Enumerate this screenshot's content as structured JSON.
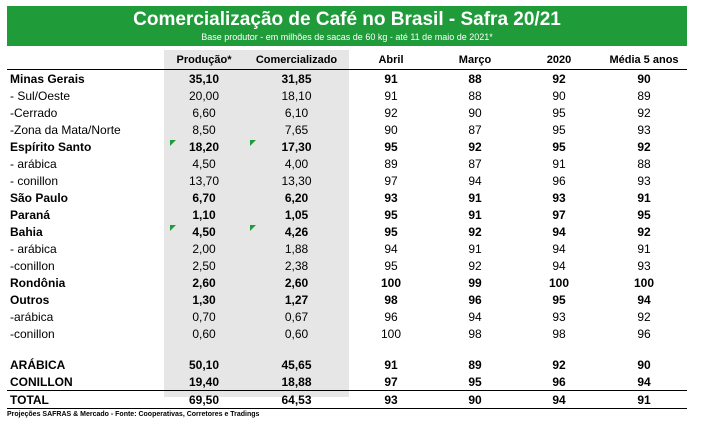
{
  "title": "Comercialização de Café no Brasil - Safra 20/21",
  "subtitle": "Base produtor - em milhões de sacas de 60 kg - até 11 de maio de 2021*",
  "columns": [
    "",
    "Produção*",
    "Comercializado",
    "Abril",
    "Março",
    "2020",
    "Média 5 anos"
  ],
  "rows": [
    {
      "label": "Minas Gerais",
      "bold": true,
      "marked": false,
      "values": [
        "35,10",
        "31,85",
        "91",
        "88",
        "92",
        "90"
      ]
    },
    {
      "label": " - Sul/Oeste",
      "bold": false,
      "marked": false,
      "values": [
        "20,00",
        "18,10",
        "91",
        "88",
        "90",
        "89"
      ]
    },
    {
      "label": " -Cerrado",
      "bold": false,
      "marked": false,
      "values": [
        "6,60",
        "6,10",
        "92",
        "90",
        "95",
        "92"
      ]
    },
    {
      "label": " -Zona da Mata/Norte",
      "bold": false,
      "marked": false,
      "values": [
        "8,50",
        "7,65",
        "90",
        "87",
        "95",
        "93"
      ]
    },
    {
      "label": "Espírito Santo",
      "bold": true,
      "marked": true,
      "values": [
        "18,20",
        "17,30",
        "95",
        "92",
        "95",
        "92"
      ]
    },
    {
      "label": " - arábica",
      "bold": false,
      "marked": false,
      "values": [
        "4,50",
        "4,00",
        "89",
        "87",
        "91",
        "88"
      ]
    },
    {
      "label": "- conillon",
      "bold": false,
      "marked": false,
      "values": [
        "13,70",
        "13,30",
        "97",
        "94",
        "96",
        "93"
      ]
    },
    {
      "label": "São Paulo",
      "bold": true,
      "marked": false,
      "values": [
        "6,70",
        "6,20",
        "93",
        "91",
        "93",
        "91"
      ]
    },
    {
      "label": "Paraná",
      "bold": true,
      "marked": false,
      "values": [
        "1,10",
        "1,05",
        "95",
        "91",
        "97",
        "95"
      ]
    },
    {
      "label": "Bahia",
      "bold": true,
      "marked": true,
      "values": [
        "4,50",
        "4,26",
        "95",
        "92",
        "94",
        "92"
      ]
    },
    {
      "label": " - arábica",
      "bold": false,
      "marked": false,
      "values": [
        "2,00",
        "1,88",
        "94",
        "91",
        "94",
        "91"
      ]
    },
    {
      "label": "-conillon",
      "bold": false,
      "marked": false,
      "values": [
        "2,50",
        "2,38",
        "95",
        "92",
        "94",
        "93"
      ]
    },
    {
      "label": "Rondônia",
      "bold": true,
      "marked": false,
      "values": [
        "2,60",
        "2,60",
        "100",
        "99",
        "100",
        "100"
      ]
    },
    {
      "label": "Outros",
      "bold": true,
      "marked": false,
      "values": [
        "1,30",
        "1,27",
        "98",
        "96",
        "95",
        "94"
      ]
    },
    {
      "label": "-arábica",
      "bold": false,
      "marked": false,
      "values": [
        "0,70",
        "0,67",
        "96",
        "94",
        "93",
        "92"
      ]
    },
    {
      "label": "-conillon",
      "bold": false,
      "marked": false,
      "values": [
        "0,60",
        "0,60",
        "100",
        "98",
        "98",
        "96"
      ]
    }
  ],
  "totals": [
    {
      "label": "ARÁBICA",
      "values": [
        "50,10",
        "45,65",
        "91",
        "89",
        "92",
        "90"
      ]
    },
    {
      "label": "CONILLON",
      "values": [
        "19,40",
        "18,88",
        "97",
        "95",
        "96",
        "94"
      ]
    }
  ],
  "total": {
    "label": "TOTAL",
    "values": [
      "69,50",
      "64,53",
      "93",
      "90",
      "94",
      "91"
    ]
  },
  "source": "Projeções SAFRAS & Mercado - Fonte: Cooperativas, Corretores e Tradings",
  "colors": {
    "banner": "#1f9b3a",
    "shaded_columns": "#e6e6e6"
  }
}
